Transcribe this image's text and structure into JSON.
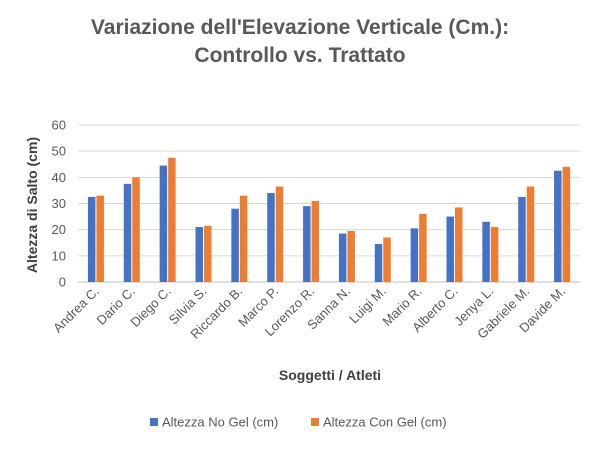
{
  "chart_data": {
    "type": "bar",
    "title_line1": "Variazione dell'Elevazione Verticale (Cm.):",
    "title_line2": "Controllo vs. Trattato",
    "xlabel": "Soggetti / Atleti",
    "ylabel": "Altezza di Salto (cm)",
    "ylim": [
      0,
      60
    ],
    "yticks": [
      0,
      10,
      20,
      30,
      40,
      50,
      60
    ],
    "grid": true,
    "legend_position": "bottom",
    "categories": [
      "Andrea C.",
      "Dario C.",
      "Diego C.",
      "Silvia S.",
      "Riccardo B.",
      "Marco P.",
      "Lorenzo R.",
      "Sanna N.",
      "Luigi M.",
      "Mario R.",
      "Alberto C.",
      "Jenya L.",
      "Gabriele M.",
      "Davide M."
    ],
    "series": [
      {
        "name": "Altezza No Gel (cm)",
        "color": "#4472C4",
        "values": [
          32.5,
          37.5,
          44.5,
          21,
          28,
          34,
          29,
          18.5,
          14.5,
          20.5,
          25,
          23,
          32.5,
          42.5
        ]
      },
      {
        "name": "Altezza Con Gel (cm)",
        "color": "#ED7D31",
        "values": [
          33,
          40,
          47.5,
          21.5,
          33,
          36.5,
          31,
          19.5,
          17,
          26,
          28.5,
          21,
          36.5,
          44
        ]
      }
    ]
  }
}
